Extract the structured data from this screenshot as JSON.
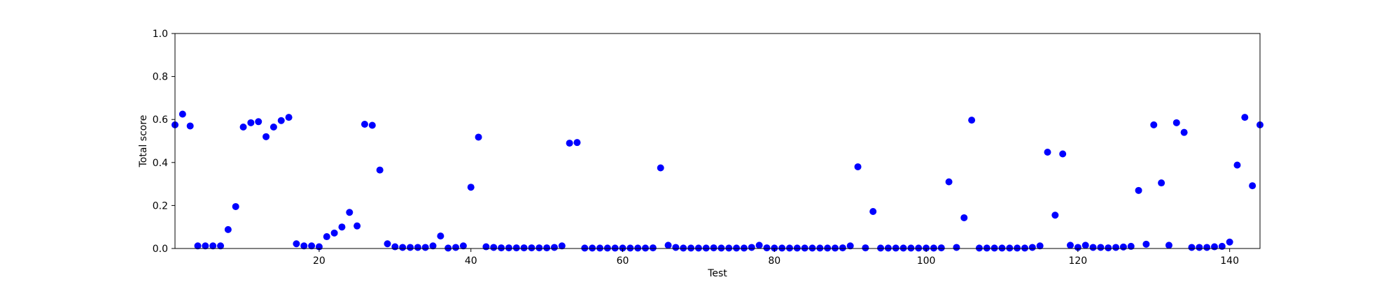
{
  "chart_data": {
    "type": "scatter",
    "title": "",
    "xlabel": "Test",
    "ylabel": "Total score",
    "xlim": [
      1,
      144
    ],
    "ylim": [
      0,
      1
    ],
    "x_ticks": [
      "20",
      "40",
      "60",
      "80",
      "100",
      "120",
      "140"
    ],
    "y_ticks": [
      "0.0",
      "0.2",
      "0.4",
      "0.6",
      "0.8",
      "1.0"
    ],
    "grid": false,
    "marker_color": "#0000ff",
    "x": [
      1,
      2,
      3,
      4,
      5,
      6,
      7,
      8,
      9,
      10,
      11,
      12,
      13,
      14,
      15,
      16,
      17,
      18,
      19,
      20,
      21,
      22,
      23,
      24,
      25,
      26,
      27,
      28,
      29,
      30,
      31,
      32,
      33,
      34,
      35,
      36,
      37,
      38,
      39,
      40,
      41,
      42,
      43,
      44,
      45,
      46,
      47,
      48,
      49,
      50,
      51,
      52,
      53,
      54,
      55,
      56,
      57,
      58,
      59,
      60,
      61,
      62,
      63,
      64,
      65,
      66,
      67,
      68,
      69,
      70,
      71,
      72,
      73,
      74,
      75,
      76,
      77,
      78,
      79,
      80,
      81,
      82,
      83,
      84,
      85,
      86,
      87,
      88,
      89,
      90,
      91,
      92,
      93,
      94,
      95,
      96,
      97,
      98,
      99,
      100,
      101,
      102,
      103,
      104,
      105,
      106,
      107,
      108,
      109,
      110,
      111,
      112,
      113,
      114,
      115,
      116,
      117,
      118,
      119,
      120,
      121,
      122,
      123,
      124,
      125,
      126,
      127,
      128,
      129,
      130,
      131,
      132,
      133,
      134,
      135,
      136,
      137,
      138,
      139,
      140,
      141,
      142,
      143,
      144
    ],
    "y": [
      0.575,
      0.625,
      0.57,
      0.012,
      0.012,
      0.012,
      0.012,
      0.088,
      0.195,
      0.565,
      0.585,
      0.59,
      0.52,
      0.565,
      0.595,
      0.61,
      0.022,
      0.012,
      0.012,
      0.008,
      0.055,
      0.072,
      0.1,
      0.168,
      0.105,
      0.578,
      0.573,
      0.365,
      0.022,
      0.008,
      0.005,
      0.005,
      0.005,
      0.005,
      0.012,
      0.058,
      0.002,
      0.005,
      0.012,
      0.285,
      0.518,
      0.008,
      0.005,
      0.003,
      0.003,
      0.003,
      0.003,
      0.003,
      0.003,
      0.003,
      0.005,
      0.012,
      0.49,
      0.493,
      0.002,
      0.002,
      0.002,
      0.002,
      0.002,
      0.002,
      0.002,
      0.002,
      0.002,
      0.003,
      0.375,
      0.015,
      0.005,
      0.002,
      0.002,
      0.002,
      0.002,
      0.003,
      0.002,
      0.002,
      0.002,
      0.002,
      0.005,
      0.015,
      0.003,
      0.002,
      0.002,
      0.002,
      0.002,
      0.002,
      0.002,
      0.002,
      0.002,
      0.002,
      0.003,
      0.012,
      0.38,
      0.003,
      0.172,
      0.002,
      0.002,
      0.002,
      0.002,
      0.002,
      0.002,
      0.002,
      0.002,
      0.003,
      0.31,
      0.005,
      0.143,
      0.597,
      0.002,
      0.002,
      0.002,
      0.002,
      0.002,
      0.002,
      0.002,
      0.005,
      0.012,
      0.448,
      0.155,
      0.44,
      0.015,
      0.005,
      0.015,
      0.005,
      0.005,
      0.003,
      0.005,
      0.007,
      0.01,
      0.27,
      0.02,
      0.575,
      0.305,
      0.015,
      0.585,
      0.54,
      0.005,
      0.005,
      0.005,
      0.008,
      0.01,
      0.03,
      0.388,
      0.61,
      0.292,
      0.575
    ]
  }
}
